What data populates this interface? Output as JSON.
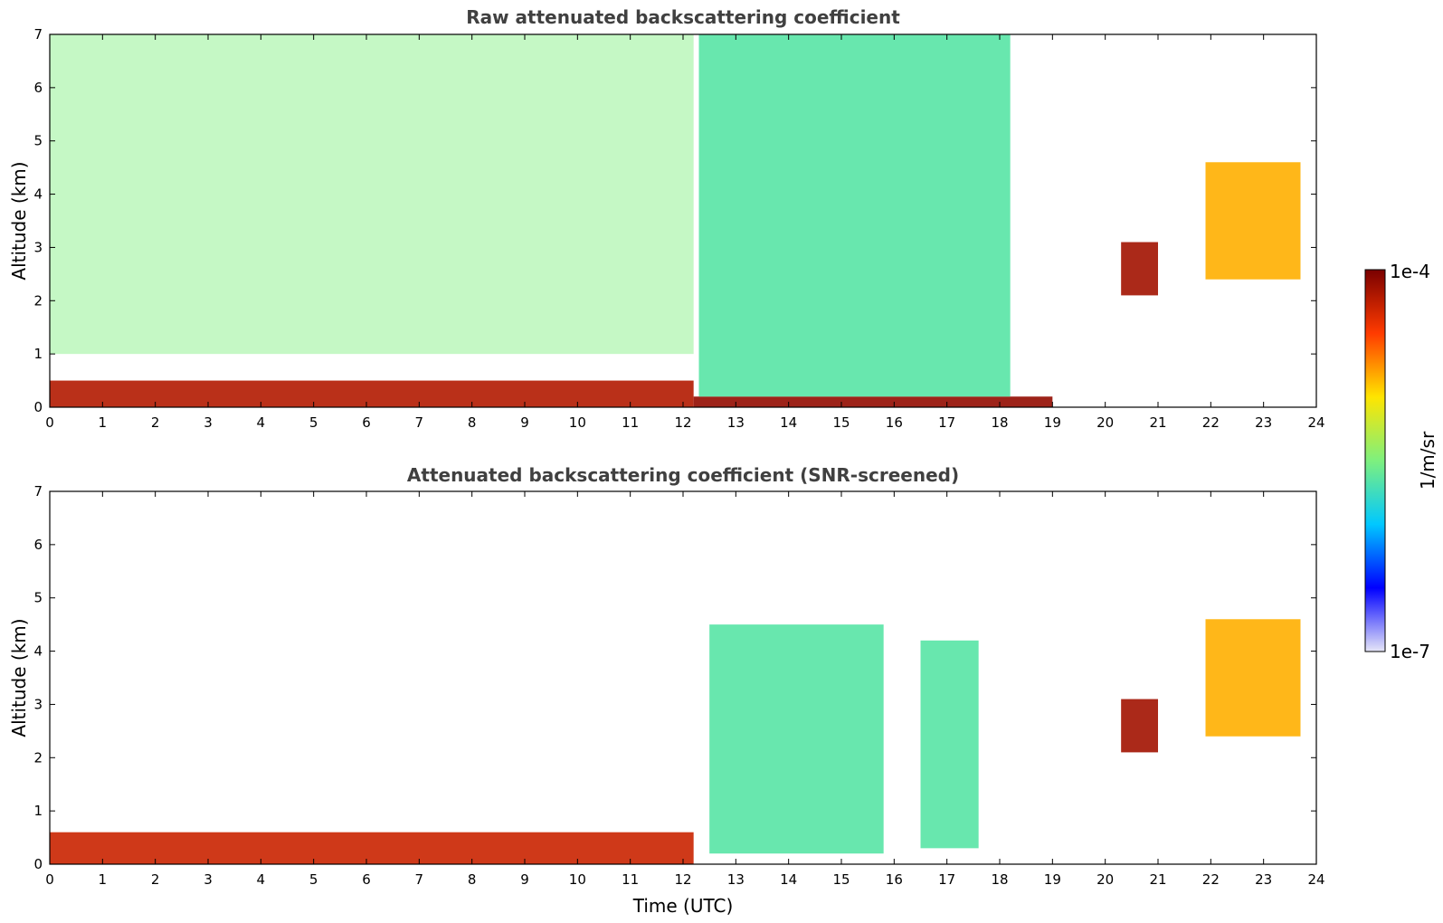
{
  "chart_data": [
    {
      "type": "heatmap",
      "title": "Raw attenuated backscattering coefficient",
      "xlabel": "",
      "ylabel": "Altitude (km)",
      "xlim": [
        0,
        24
      ],
      "ylim": [
        0,
        7
      ],
      "xticks": [
        "0",
        "1",
        "2",
        "3",
        "4",
        "5",
        "6",
        "7",
        "8",
        "9",
        "10",
        "11",
        "12",
        "13",
        "14",
        "15",
        "16",
        "17",
        "18",
        "19",
        "20",
        "21",
        "22",
        "23",
        "24"
      ],
      "yticks": [
        "0",
        "1",
        "2",
        "3",
        "4",
        "5",
        "6",
        "7"
      ],
      "grid": false,
      "features": [
        {
          "name": "boundary layer",
          "t_start": 0,
          "t_end": 12.2,
          "alt_top": 0.5,
          "level": 0.93
        },
        {
          "name": "low layer",
          "t_start": 12.2,
          "t_end": 19.0,
          "alt_top": 0.2,
          "level": 0.97
        },
        {
          "name": "noise region",
          "t_start": 0,
          "t_end": 12.2,
          "alt_bottom": 1.0,
          "alt_top": 7,
          "level": 0.5
        },
        {
          "name": "virga columns",
          "t_start": 12.3,
          "t_end": 18.2,
          "alt_bottom": 0.2,
          "alt_top": 7,
          "level": 0.45
        },
        {
          "name": "tilted cloud",
          "t_start": 20.3,
          "t_end": 21.0,
          "alt_bottom": 2.1,
          "alt_top": 3.1,
          "level": 0.95
        },
        {
          "name": "upper cloud",
          "t_start": 21.9,
          "t_end": 23.7,
          "alt_bottom": 2.4,
          "alt_top": 4.6,
          "level": 0.72
        }
      ]
    },
    {
      "type": "heatmap",
      "title": "Attenuated backscattering coefficient (SNR-screened)",
      "xlabel": "Time (UTC)",
      "ylabel": "Altitude (km)",
      "xlim": [
        0,
        24
      ],
      "ylim": [
        0,
        7
      ],
      "xticks": [
        "0",
        "1",
        "2",
        "3",
        "4",
        "5",
        "6",
        "7",
        "8",
        "9",
        "10",
        "11",
        "12",
        "13",
        "14",
        "15",
        "16",
        "17",
        "18",
        "19",
        "20",
        "21",
        "22",
        "23",
        "24"
      ],
      "yticks": [
        "0",
        "1",
        "2",
        "3",
        "4",
        "5",
        "6",
        "7"
      ],
      "grid": false,
      "features": [
        {
          "name": "boundary layer",
          "t_start": 0,
          "t_end": 12.2,
          "alt_top": 0.6,
          "level": 0.9
        },
        {
          "name": "cloud columns",
          "t_start": 12.5,
          "t_end": 15.8,
          "alt_bottom": 0.2,
          "alt_top": 4.5,
          "level": 0.45
        },
        {
          "name": "cloud column 2",
          "t_start": 16.5,
          "t_end": 17.6,
          "alt_bottom": 0.3,
          "alt_top": 4.2,
          "level": 0.45
        },
        {
          "name": "tilted cloud",
          "t_start": 20.3,
          "t_end": 21.0,
          "alt_bottom": 2.1,
          "alt_top": 3.1,
          "level": 0.95
        },
        {
          "name": "upper cloud",
          "t_start": 21.9,
          "t_end": 23.7,
          "alt_bottom": 2.4,
          "alt_top": 4.6,
          "level": 0.72
        }
      ]
    }
  ],
  "colorbar": {
    "label": "1/m/sr",
    "max_label": "1e-4",
    "min_label": "1e-7",
    "scale": "log",
    "colormap": [
      "#e6e6f7",
      "#0000ff",
      "#00c8ff",
      "#7ef07e",
      "#ffe500",
      "#ff3b00",
      "#7a0000"
    ]
  },
  "colors": {
    "background": "#ffffff",
    "title": "#404040"
  }
}
